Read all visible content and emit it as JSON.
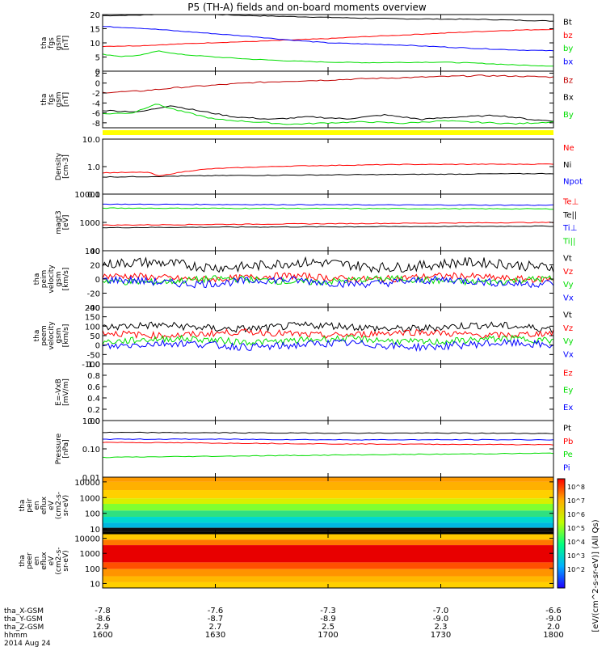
{
  "title": "P5 (TH-A) fields and on-board moments overview",
  "date_label": "2014 Aug 24",
  "colorbar_label": "[eV/(cm^2-s-sr-eV)] (All Qs)",
  "colorbar_ticks": [
    "10^8",
    "10^7",
    "10^6",
    "10^5",
    "10^4",
    "10^3",
    "10^2"
  ],
  "colors": {
    "black": "#000000",
    "red": "#ff0000",
    "darkred": "#c00000",
    "blue": "#0000ff",
    "green": "#00dd00",
    "yellow": "#ffff00"
  },
  "chart_data": [
    {
      "type": "line",
      "id": "fgs-gsm",
      "ylabel": [
        "tha",
        "fgs",
        "gsm",
        "[nT]"
      ],
      "ylim": [
        0,
        20
      ],
      "yticks": [
        "20",
        "15",
        "10",
        "5",
        "0"
      ],
      "series": [
        {
          "name": "Bt",
          "color": "#000000",
          "x": [
            1600,
            1610,
            1620,
            1630,
            1640,
            1650,
            1700,
            1710,
            1720,
            1730,
            1740,
            1750,
            1800
          ],
          "y": [
            19.6,
            19.8,
            20.4,
            20.0,
            19.6,
            19.3,
            19.0,
            18.7,
            18.5,
            18.4,
            18.3,
            18.0,
            17.7
          ]
        },
        {
          "name": "bz",
          "color": "#ff0000",
          "x": [
            1600,
            1610,
            1620,
            1630,
            1640,
            1650,
            1700,
            1710,
            1720,
            1730,
            1740,
            1750,
            1800
          ],
          "y": [
            8.8,
            9.0,
            9.6,
            10.1,
            10.5,
            11.0,
            11.5,
            12.2,
            12.8,
            13.4,
            14.0,
            14.5,
            14.8
          ]
        },
        {
          "name": "by",
          "color": "#00dd00",
          "x": [
            1600,
            1605,
            1610,
            1615,
            1620,
            1630,
            1640,
            1650,
            1700,
            1710,
            1720,
            1730,
            1740,
            1750,
            1800
          ],
          "y": [
            6.0,
            5.2,
            5.6,
            7.2,
            6.0,
            5.0,
            4.2,
            3.6,
            3.2,
            3.0,
            3.1,
            3.2,
            2.8,
            2.2,
            1.8
          ]
        },
        {
          "name": "bx",
          "color": "#0000ff",
          "x": [
            1600,
            1610,
            1620,
            1630,
            1640,
            1650,
            1700,
            1710,
            1720,
            1730,
            1740,
            1750,
            1800
          ],
          "y": [
            15.8,
            15.2,
            14.2,
            13.2,
            12.2,
            11.0,
            10.0,
            9.6,
            9.2,
            8.6,
            8.0,
            7.5,
            7.2
          ]
        }
      ]
    },
    {
      "type": "line",
      "id": "fgs-gsm-zoom",
      "ylabel": [
        "tha",
        "fgs",
        "gsm",
        "[nT]"
      ],
      "ylim": [
        -9,
        2.4
      ],
      "yticks": [
        "2",
        "0",
        "-2",
        "-4",
        "-6",
        "-8"
      ],
      "series": [
        {
          "name": "Bz",
          "color": "#c00000",
          "x": [
            1600,
            1610,
            1620,
            1630,
            1640,
            1650,
            1700,
            1710,
            1720,
            1730,
            1740,
            1750,
            1800
          ],
          "y": [
            -1.9,
            -1.6,
            -0.9,
            -0.4,
            0.1,
            0.4,
            0.6,
            0.9,
            1.1,
            1.3,
            1.5,
            1.4,
            1.2
          ]
        },
        {
          "name": "Bx",
          "color": "#000000",
          "x": [
            1600,
            1610,
            1618,
            1625,
            1635,
            1645,
            1655,
            1705,
            1715,
            1725,
            1735,
            1745,
            1755,
            1800
          ],
          "y": [
            -5.5,
            -5.8,
            -4.5,
            -5.5,
            -6.8,
            -7.3,
            -6.8,
            -7.2,
            -6.4,
            -7.3,
            -6.8,
            -6.5,
            -7.4,
            -7.6
          ]
        },
        {
          "name": "By",
          "color": "#00dd00",
          "x": [
            1600,
            1608,
            1614,
            1620,
            1630,
            1640,
            1650,
            1700,
            1710,
            1720,
            1730,
            1740,
            1750,
            1800
          ],
          "y": [
            -6.2,
            -6.0,
            -4.2,
            -5.5,
            -7.3,
            -7.8,
            -8.3,
            -8.0,
            -7.8,
            -8.1,
            -7.6,
            -7.9,
            -8.2,
            -7.8
          ]
        }
      ]
    },
    {
      "type": "line",
      "id": "density",
      "ylabel": [
        "Density",
        "[cm-3]"
      ],
      "ylog": true,
      "ylim": [
        0.1,
        10
      ],
      "yticks": [
        "10.0",
        "1.0",
        "0.1"
      ],
      "series": [
        {
          "name": "Ne",
          "color": "#ff0000",
          "x": [
            1600,
            1612,
            1615,
            1625,
            1630,
            1640,
            1650,
            1700,
            1710,
            1720,
            1730,
            1740,
            1750,
            1800
          ],
          "y": [
            0.6,
            0.62,
            0.45,
            0.75,
            0.85,
            0.95,
            1.05,
            1.1,
            1.15,
            1.2,
            1.2,
            1.22,
            1.22,
            1.25
          ]
        },
        {
          "name": "Ni",
          "color": "#000000",
          "x": [
            1600,
            1610,
            1620,
            1630,
            1640,
            1650,
            1700,
            1710,
            1720,
            1730,
            1740,
            1750,
            1800
          ],
          "y": [
            0.42,
            0.43,
            0.45,
            0.47,
            0.48,
            0.49,
            0.5,
            0.51,
            0.52,
            0.53,
            0.54,
            0.55,
            0.56
          ]
        },
        {
          "name": "Npot",
          "color": "#0000ff",
          "x": [],
          "y": []
        }
      ]
    },
    {
      "type": "line",
      "id": "temperature",
      "ylabel": [
        "magt3",
        "[eV]"
      ],
      "ylog": true,
      "ylim": [
        100,
        10000
      ],
      "yticks": [
        "10000",
        "1000",
        "100"
      ],
      "series": [
        {
          "name": "Te⊥",
          "color": "#ff0000",
          "x": [
            1600,
            1630,
            1700,
            1730,
            1800
          ],
          "y": [
            800,
            850,
            900,
            950,
            1000
          ]
        },
        {
          "name": "Te||",
          "color": "#000000",
          "x": [
            1600,
            1630,
            1700,
            1730,
            1800
          ],
          "y": [
            650,
            680,
            700,
            720,
            740
          ]
        },
        {
          "name": "Ti⊥",
          "color": "#0000ff",
          "x": [
            1600,
            1630,
            1700,
            1730,
            1800
          ],
          "y": [
            4400,
            4300,
            4200,
            4100,
            4050
          ]
        },
        {
          "name": "Ti||",
          "color": "#00dd00",
          "x": [
            1600,
            1630,
            1700,
            1730,
            1800
          ],
          "y": [
            3200,
            3150,
            3100,
            3050,
            3000
          ]
        }
      ]
    },
    {
      "type": "line",
      "id": "peim-velocity",
      "ylabel": [
        "tha",
        "peim",
        "velocity",
        "gsm",
        "[km/s]"
      ],
      "ylim": [
        -40,
        40
      ],
      "yticks": [
        "40",
        "20",
        "0",
        "-20",
        "-40"
      ],
      "noisy": true,
      "series": [
        {
          "name": "Vt",
          "color": "#000000",
          "mean": 20,
          "amp": 9
        },
        {
          "name": "Vz",
          "color": "#ff0000",
          "mean": 2,
          "amp": 6
        },
        {
          "name": "Vy",
          "color": "#00dd00",
          "mean": -2,
          "amp": 6
        },
        {
          "name": "Vx",
          "color": "#0000ff",
          "mean": -4,
          "amp": 7
        }
      ]
    },
    {
      "type": "line",
      "id": "peem-velocity",
      "ylabel": [
        "tha",
        "peem",
        "velocity",
        "gsm",
        "[km/s]"
      ],
      "ylim": [
        -100,
        200
      ],
      "yticks": [
        "200",
        "150",
        "100",
        "50",
        "0",
        "-50",
        "-100"
      ],
      "noisy": true,
      "series": [
        {
          "name": "Vt",
          "color": "#000000",
          "mean": 95,
          "amp": 25
        },
        {
          "name": "Vz",
          "color": "#ff0000",
          "mean": 60,
          "amp": 22
        },
        {
          "name": "Vy",
          "color": "#00dd00",
          "mean": 25,
          "amp": 22
        },
        {
          "name": "Vx",
          "color": "#0000ff",
          "mean": 0,
          "amp": 25
        }
      ]
    },
    {
      "type": "line",
      "id": "efield",
      "ylabel": [
        "E=-VxB",
        "[mV/m]"
      ],
      "ylim": [
        0,
        1
      ],
      "yticks": [
        "1.0",
        "0.8",
        "0.6",
        "0.4",
        "0.2",
        "0.0"
      ],
      "series": [
        {
          "name": "Ez",
          "color": "#ff0000",
          "x": [],
          "y": []
        },
        {
          "name": "Ey",
          "color": "#00dd00",
          "x": [],
          "y": []
        },
        {
          "name": "Ex",
          "color": "#0000ff",
          "x": [],
          "y": []
        }
      ]
    },
    {
      "type": "line",
      "id": "pressure",
      "ylabel": [
        "Pressure",
        "[nPa]"
      ],
      "ylog": true,
      "ylim": [
        0.01,
        1
      ],
      "yticks": [
        "1.00",
        "0.10",
        "0.01"
      ],
      "series": [
        {
          "name": "Pt",
          "color": "#000000",
          "x": [
            1600,
            1630,
            1700,
            1730,
            1800
          ],
          "y": [
            0.38,
            0.37,
            0.36,
            0.36,
            0.35
          ]
        },
        {
          "name": "Pb",
          "color": "#ff0000",
          "x": [
            1600,
            1630,
            1700,
            1730,
            1800
          ],
          "y": [
            0.17,
            0.16,
            0.15,
            0.145,
            0.14
          ]
        },
        {
          "name": "Pe",
          "color": "#00dd00",
          "x": [
            1600,
            1630,
            1700,
            1730,
            1800
          ],
          "y": [
            0.05,
            0.055,
            0.06,
            0.065,
            0.07
          ]
        },
        {
          "name": "Pi",
          "color": "#0000ff",
          "x": [
            1600,
            1630,
            1700,
            1730,
            1800
          ],
          "y": [
            0.22,
            0.22,
            0.21,
            0.21,
            0.21
          ]
        }
      ]
    },
    {
      "type": "heatmap",
      "id": "peir-spectrogram",
      "ylabel": [
        "tha",
        "peir",
        "en",
        "eflux",
        "eV",
        "(cm2-s-",
        "sr-eV)"
      ],
      "ylog": true,
      "ylim": [
        5,
        20000
      ],
      "yticks": [
        "10000",
        "1000",
        "100",
        "10"
      ],
      "bands": [
        {
          "from": 10000,
          "to": 20000,
          "color": "#ff9c00"
        },
        {
          "from": 3000,
          "to": 10000,
          "color": "#ffb000"
        },
        {
          "from": 900,
          "to": 3000,
          "color": "#ffd000"
        },
        {
          "from": 400,
          "to": 900,
          "color": "#d8f000"
        },
        {
          "from": 150,
          "to": 400,
          "color": "#80ff30"
        },
        {
          "from": 60,
          "to": 150,
          "color": "#30e080"
        },
        {
          "from": 25,
          "to": 60,
          "color": "#00d8d0"
        },
        {
          "from": 12,
          "to": 25,
          "color": "#00b8e0"
        },
        {
          "from": 7,
          "to": 12,
          "color": "#101010"
        },
        {
          "from": 5,
          "to": 7,
          "color": "#000000"
        }
      ]
    },
    {
      "type": "heatmap",
      "id": "peer-spectrogram",
      "ylabel": [
        "tha",
        "peer",
        "en",
        "eflux",
        "eV",
        "(cm2-s-",
        "sr-eV)"
      ],
      "ylog": true,
      "ylim": [
        5,
        20000
      ],
      "yticks": [
        "10000",
        "1000",
        "100",
        "10"
      ],
      "bands": [
        {
          "from": 8000,
          "to": 20000,
          "color": "#ffc800"
        },
        {
          "from": 3500,
          "to": 8000,
          "color": "#ff7800"
        },
        {
          "from": 250,
          "to": 3500,
          "color": "#e80000"
        },
        {
          "from": 90,
          "to": 250,
          "color": "#ff5000"
        },
        {
          "from": 30,
          "to": 90,
          "color": "#ff9400"
        },
        {
          "from": 12,
          "to": 30,
          "color": "#ffb800"
        },
        {
          "from": 5,
          "to": 12,
          "color": "#ffd000"
        }
      ]
    }
  ],
  "x_axis": {
    "xlim": [
      1600,
      1800
    ],
    "tick_positions": [
      1600,
      1630,
      1700,
      1730,
      1800
    ],
    "row_labels": [
      "tha_X-GSM",
      "tha_Y-GSM",
      "tha_Z-GSM",
      "hhmm"
    ],
    "rows": [
      [
        "-7.8",
        "-7.6",
        "-7.3",
        "-7.0",
        "-6.6"
      ],
      [
        "-8.6",
        "-8.7",
        "-8.9",
        "-9.0",
        "-9.0"
      ],
      [
        "2.9",
        "2.7",
        "2.5",
        "2.3",
        "2.0"
      ],
      [
        "1600",
        "1630",
        "1700",
        "1730",
        "1800"
      ]
    ]
  }
}
